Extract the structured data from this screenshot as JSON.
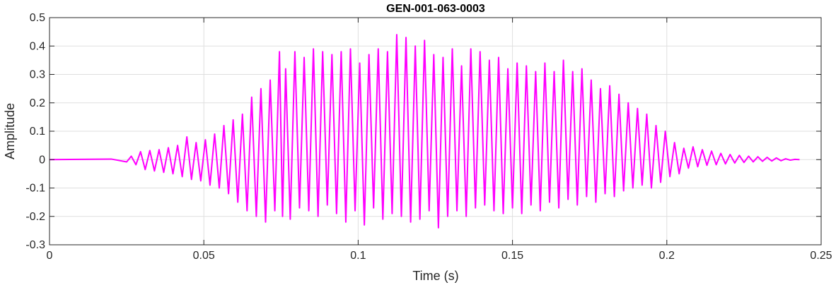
{
  "chart_data": {
    "type": "line",
    "title": "GEN-001-063-0003",
    "xlabel": "Time (s)",
    "ylabel": "Amplitude",
    "xlim": [
      0,
      0.25
    ],
    "ylim": [
      -0.3,
      0.5
    ],
    "xticks": [
      0,
      0.05,
      0.1,
      0.15,
      0.2,
      0.25
    ],
    "xtick_labels": [
      "0",
      "0.05",
      "0.1",
      "0.15",
      "0.2",
      "0.25"
    ],
    "yticks": [
      -0.3,
      -0.2,
      -0.1,
      0,
      0.1,
      0.2,
      0.3,
      0.4,
      0.5
    ],
    "ytick_labels": [
      "-0.3",
      "-0.2",
      "-0.1",
      "0",
      "0.1",
      "0.2",
      "0.3",
      "0.4",
      "0.5"
    ],
    "grid": true,
    "color": "#ff00ff",
    "series": [
      {
        "x": [
          0,
          0.02,
          0.025,
          0.0265,
          0.028,
          0.0295,
          0.031,
          0.0325,
          0.034,
          0.0355,
          0.037,
          0.0385,
          0.04,
          0.0415,
          0.043,
          0.0445,
          0.046,
          0.0475,
          0.049,
          0.0505,
          0.052,
          0.0535,
          0.055,
          0.0565,
          0.058,
          0.0595,
          0.061,
          0.0625,
          0.064,
          0.0655,
          0.067,
          0.0685,
          0.07,
          0.0715,
          0.073,
          0.0745,
          0.0755,
          0.0765,
          0.078,
          0.0795,
          0.081,
          0.0825,
          0.084,
          0.0855,
          0.087,
          0.0885,
          0.09,
          0.0915,
          0.093,
          0.0945,
          0.096,
          0.0975,
          0.099,
          0.1005,
          0.102,
          0.1035,
          0.105,
          0.1065,
          0.108,
          0.1095,
          0.111,
          0.1125,
          0.114,
          0.1155,
          0.117,
          0.1185,
          0.12,
          0.1215,
          0.123,
          0.1245,
          0.126,
          0.1275,
          0.129,
          0.1305,
          0.132,
          0.1335,
          0.135,
          0.1365,
          0.138,
          0.1395,
          0.141,
          0.1425,
          0.144,
          0.1455,
          0.147,
          0.1485,
          0.15,
          0.1515,
          0.153,
          0.1545,
          0.156,
          0.1575,
          0.159,
          0.1605,
          0.162,
          0.1635,
          0.165,
          0.1665,
          0.168,
          0.1695,
          0.171,
          0.1725,
          0.174,
          0.1755,
          0.177,
          0.1785,
          0.18,
          0.1815,
          0.183,
          0.1845,
          0.186,
          0.1875,
          0.189,
          0.1905,
          0.192,
          0.1935,
          0.195,
          0.1965,
          0.198,
          0.1995,
          0.201,
          0.2025,
          0.204,
          0.2055,
          0.207,
          0.2085,
          0.21,
          0.2115,
          0.213,
          0.2145,
          0.216,
          0.2175,
          0.219,
          0.2205,
          0.222,
          0.2235,
          0.225,
          0.2265,
          0.228,
          0.2295,
          0.231,
          0.2325,
          0.234,
          0.2355,
          0.237,
          0.2385,
          0.24,
          0.2415,
          0.243
        ],
        "y": [
          0,
          0.002,
          -0.008,
          0.012,
          -0.018,
          0.028,
          -0.035,
          0.032,
          -0.04,
          0.035,
          -0.045,
          0.042,
          -0.05,
          0.05,
          -0.06,
          0.08,
          -0.07,
          0.06,
          -0.075,
          0.07,
          -0.09,
          0.09,
          -0.1,
          0.12,
          -0.12,
          0.14,
          -0.15,
          0.16,
          -0.18,
          0.22,
          -0.2,
          0.25,
          -0.22,
          0.28,
          -0.18,
          0.38,
          -0.2,
          0.32,
          -0.21,
          0.38,
          -0.17,
          0.36,
          -0.18,
          0.39,
          -0.2,
          0.38,
          -0.16,
          0.37,
          -0.19,
          0.38,
          -0.22,
          0.39,
          -0.18,
          0.34,
          -0.23,
          0.37,
          -0.17,
          0.39,
          -0.21,
          0.38,
          -0.19,
          0.44,
          -0.2,
          0.43,
          -0.22,
          0.4,
          -0.21,
          0.42,
          -0.18,
          0.37,
          -0.24,
          0.36,
          -0.2,
          0.39,
          -0.18,
          0.33,
          -0.2,
          0.39,
          -0.17,
          0.38,
          -0.16,
          0.35,
          -0.18,
          0.36,
          -0.19,
          0.32,
          -0.17,
          0.34,
          -0.19,
          0.33,
          -0.16,
          0.31,
          -0.18,
          0.34,
          -0.15,
          0.31,
          -0.17,
          0.35,
          -0.14,
          0.31,
          -0.16,
          0.32,
          -0.13,
          0.28,
          -0.15,
          0.25,
          -0.12,
          0.26,
          -0.13,
          0.23,
          -0.11,
          0.2,
          -0.1,
          0.18,
          -0.09,
          0.16,
          -0.1,
          0.12,
          -0.08,
          0.1,
          -0.06,
          0.06,
          -0.05,
          0.04,
          -0.03,
          0.045,
          -0.025,
          0.035,
          -0.02,
          0.03,
          -0.018,
          0.022,
          -0.015,
          0.018,
          -0.012,
          0.015,
          -0.01,
          0.012,
          -0.008,
          0.01,
          -0.006,
          0.008,
          -0.005,
          0.006,
          -0.004,
          0.003,
          -0.002,
          0.001,
          0
        ]
      }
    ]
  }
}
